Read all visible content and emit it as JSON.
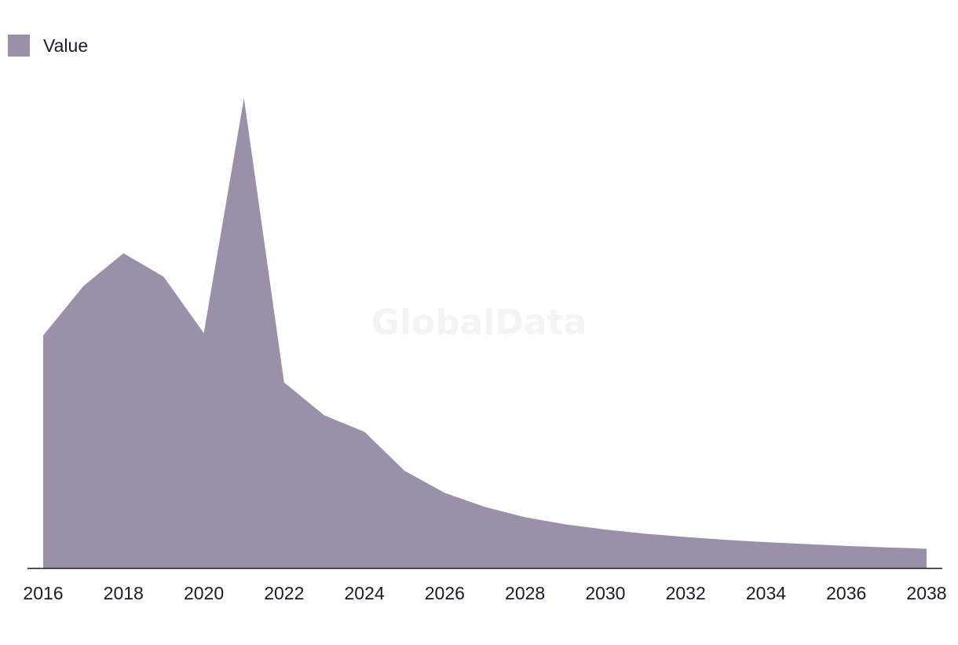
{
  "watermark": "GlobalData",
  "chart_data": {
    "type": "area",
    "title": "",
    "xlabel": "",
    "ylabel": "",
    "legend": {
      "position": "top-left"
    },
    "grid": false,
    "x": [
      2016,
      2017,
      2018,
      2019,
      2020,
      2021,
      2022,
      2023,
      2024,
      2025,
      2026,
      2027,
      2028,
      2029,
      2030,
      2031,
      2032,
      2033,
      2034,
      2035,
      2036,
      2037,
      2038
    ],
    "xticks": [
      "2016",
      "2018",
      "2020",
      "2022",
      "2024",
      "2026",
      "2028",
      "2030",
      "2032",
      "2034",
      "2036",
      "2038"
    ],
    "ylim": [
      0,
      100
    ],
    "series": [
      {
        "name": "Value",
        "color": "#9a91a9",
        "values": [
          49.5,
          60,
          67,
          62,
          50,
          100,
          39.5,
          32.5,
          29,
          20.7,
          16,
          13,
          10.8,
          9.3,
          8.2,
          7.3,
          6.6,
          6,
          5.5,
          5.1,
          4.7,
          4.4,
          4.1
        ]
      }
    ]
  }
}
